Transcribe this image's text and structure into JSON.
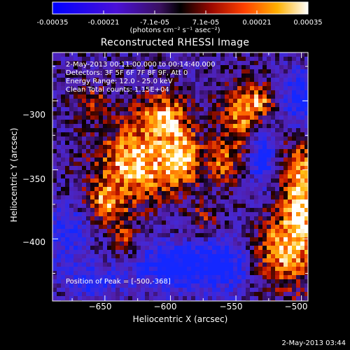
{
  "colorbar": {
    "ticks": [
      "-0.00035",
      "-0.00021",
      "-7.1e-05",
      "7.1e-05",
      "0.00021",
      "0.00035"
    ],
    "units_label": "(photons cm⁻² s⁻¹ asec⁻²)",
    "range": [
      -0.00035,
      0.00035
    ],
    "colors": [
      "#0000ff",
      "#5f00cf",
      "#000000",
      "#c81000",
      "#ff7000",
      "#ffffff"
    ]
  },
  "chart_data": {
    "type": "heatmap",
    "title": "Reconstructed RHESSI Image",
    "xlabel": "Heliocentric X (arcsec)",
    "ylabel": "Heliocentric Y (arcsec)",
    "xlim": [
      -690,
      -495
    ],
    "ylim": [
      -445,
      -265
    ],
    "xticks": [
      -650,
      -600,
      -550,
      -500
    ],
    "yticks": [
      -300,
      -350,
      -400
    ],
    "xtick_labels": [
      "−650",
      "−600",
      "−550",
      "−500"
    ],
    "ytick_labels": [
      "−300",
      "−350",
      "−400"
    ],
    "peak": [
      -500,
      -368
    ],
    "annotations": [
      "2-May-2013 00:11:00.000 to 00:14:40.000",
      "Detectors: 3F 5F 6F 7F 8F 9F, Att 0",
      "Energy Range: 12.0 - 25.0 keV",
      "Clean    Total counts: 1.15E+04"
    ],
    "peak_label": "Position of Peak = [-500,-368]"
  },
  "timestamp": "2-May-2013 03:44"
}
